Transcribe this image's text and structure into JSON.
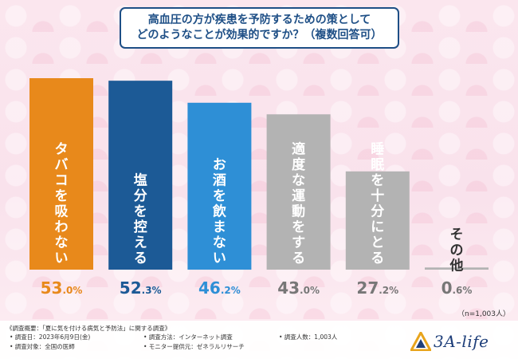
{
  "title": {
    "line1": "高血圧の方が疾患を予防するための策として",
    "line2": "どのようなことが効果的ですか？（複数回答可）"
  },
  "chart_data": {
    "type": "bar",
    "title": "高血圧の方が疾患を予防するための策として どのようなことが効果的ですか？（複数回答可）",
    "categories": [
      "タバコを吸わない",
      "塩分を控える",
      "お酒を飲まない",
      "適度な運動をする",
      "睡眠を十分にとる",
      "その他"
    ],
    "values": [
      53.0,
      52.3,
      46.2,
      43.0,
      27.2,
      0.6
    ],
    "value_labels": [
      {
        "int": "53",
        "dec": ".0%"
      },
      {
        "int": "52",
        "dec": ".3%"
      },
      {
        "int": "46",
        "dec": ".2%"
      },
      {
        "int": "43",
        "dec": ".0%"
      },
      {
        "int": "27",
        "dec": ".2%"
      },
      {
        "int": "0",
        "dec": ".6%"
      }
    ],
    "colors": [
      "#e8891b",
      "#1c5a96",
      "#2e8fd6",
      "#b3b3b3",
      "#b3b3b3",
      "#b3b3b3"
    ],
    "value_colors": [
      "#e8891b",
      "#1c5a96",
      "#2e8fd6",
      "#777777",
      "#777777",
      "#777777"
    ],
    "ylim": [
      0,
      53
    ],
    "xlabel": "",
    "ylabel": ""
  },
  "sample_note": "（n=1,003人）",
  "footer": {
    "summary": "《調査概要：「夏に気を付ける病気と予防法」に関する調査》",
    "date": "• 調査日：2023年6月9日(金)",
    "method": "• 調査方法：インターネット調査",
    "count": "• 調査人数：1,003人",
    "target": "• 調査対象：全国の医師",
    "provider": "• モニター提供元：ゼネラルリサーチ"
  },
  "logo": {
    "text": "3A-life"
  },
  "colors": {
    "title": "#1e4f86",
    "logo": "#1f3f7a",
    "logo_accent": "#e8a41c"
  }
}
